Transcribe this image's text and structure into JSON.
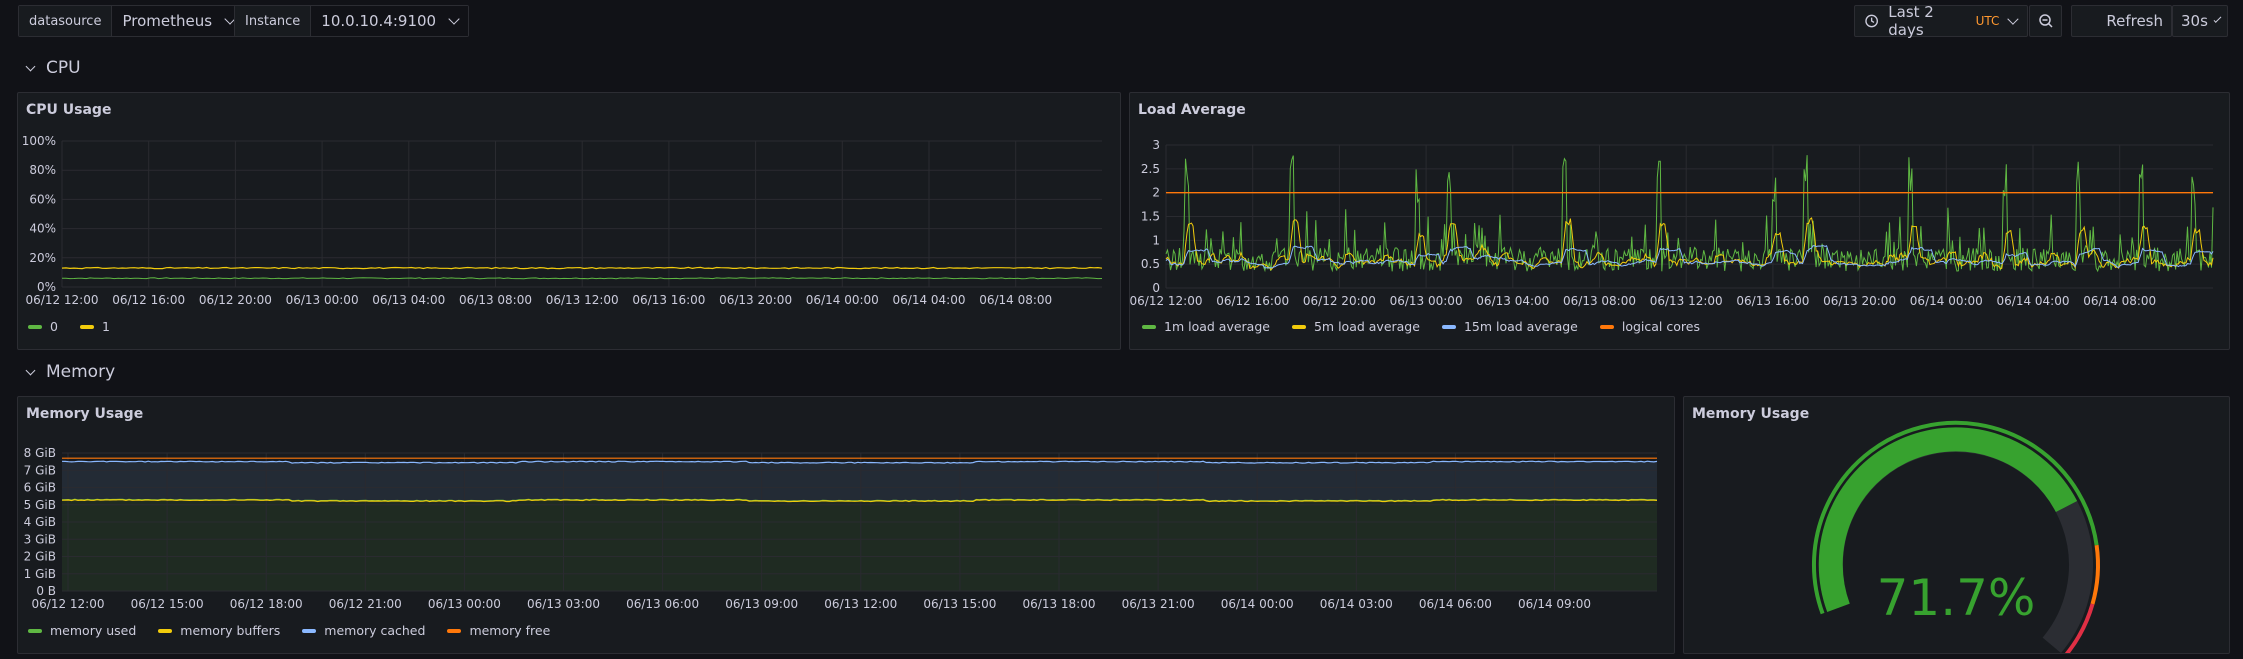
{
  "variables": {
    "datasource": {
      "label": "datasource",
      "value": "Prometheus"
    },
    "instance": {
      "label": "Instance",
      "value": "10.0.10.4:9100"
    }
  },
  "time_picker": {
    "range": "Last 2 days",
    "tz": "UTC"
  },
  "refresh": {
    "label": "Refresh",
    "interval": "30s"
  },
  "rows": {
    "cpu": "CPU",
    "memory": "Memory"
  },
  "colors": {
    "green": "#5fb843",
    "yellow": "#f2cc0c",
    "blue": "#8ab8ff",
    "orange": "#ff780a",
    "gauge_green": "#37a22f",
    "red": "#e02f44"
  },
  "panels": {
    "cpu_usage": {
      "title": "CPU Usage",
      "legend": [
        {
          "label": "0",
          "color": "#5fb843"
        },
        {
          "label": "1",
          "color": "#f2cc0c"
        }
      ],
      "y_ticks": [
        "100%",
        "80%",
        "60%",
        "40%",
        "20%",
        "0%"
      ],
      "x_ticks": [
        "06/12 12:00",
        "06/12 16:00",
        "06/12 20:00",
        "06/13 00:00",
        "06/13 04:00",
        "06/13 08:00",
        "06/13 12:00",
        "06/13 16:00",
        "06/13 20:00",
        "06/14 00:00",
        "06/14 04:00",
        "06/14 08:00"
      ]
    },
    "load_average": {
      "title": "Load Average",
      "legend": [
        {
          "label": "1m load average",
          "color": "#5fb843"
        },
        {
          "label": "5m load average",
          "color": "#f2cc0c"
        },
        {
          "label": "15m load average",
          "color": "#8ab8ff"
        },
        {
          "label": "logical cores",
          "color": "#ff780a"
        }
      ],
      "y_ticks": [
        "3",
        "2.5",
        "2",
        "1.5",
        "1",
        "0.5",
        "0"
      ],
      "x_ticks": [
        "06/12 12:00",
        "06/12 16:00",
        "06/12 20:00",
        "06/13 00:00",
        "06/13 04:00",
        "06/13 08:00",
        "06/13 12:00",
        "06/13 16:00",
        "06/13 20:00",
        "06/14 00:00",
        "06/14 04:00",
        "06/14 08:00"
      ]
    },
    "memory_usage": {
      "title": "Memory Usage",
      "legend": [
        {
          "label": "memory used",
          "color": "#5fb843"
        },
        {
          "label": "memory buffers",
          "color": "#f2cc0c"
        },
        {
          "label": "memory cached",
          "color": "#8ab8ff"
        },
        {
          "label": "memory free",
          "color": "#ff780a"
        }
      ],
      "y_ticks": [
        "8 GiB",
        "7 GiB",
        "6 GiB",
        "5 GiB",
        "4 GiB",
        "3 GiB",
        "2 GiB",
        "1 GiB",
        "0 B"
      ],
      "x_ticks": [
        "06/12 12:00",
        "06/12 15:00",
        "06/12 18:00",
        "06/12 21:00",
        "06/13 00:00",
        "06/13 03:00",
        "06/13 06:00",
        "06/13 09:00",
        "06/13 12:00",
        "06/13 15:00",
        "06/13 18:00",
        "06/13 21:00",
        "06/14 00:00",
        "06/14 03:00",
        "06/14 06:00",
        "06/14 09:00"
      ]
    },
    "memory_gauge": {
      "title": "Memory Usage",
      "value_text": "71.7%",
      "value": 71.7
    }
  },
  "chart_data": [
    {
      "type": "line",
      "title": "CPU Usage",
      "ylim": [
        0,
        100
      ],
      "series": [
        {
          "name": "0",
          "values": [
            6,
            6,
            6,
            6,
            6,
            6,
            6,
            6,
            6,
            6,
            6,
            6
          ]
        },
        {
          "name": "1",
          "values": [
            13,
            13,
            13,
            13,
            13,
            13,
            13,
            13,
            13,
            13,
            13,
            13
          ]
        }
      ]
    },
    {
      "type": "line",
      "title": "Load Average",
      "ylim": [
        0,
        3
      ],
      "series": [
        {
          "name": "1m load average",
          "values": [
            0.6,
            0.5,
            0.7,
            0.6,
            2.7,
            0.6,
            2.6,
            0.5,
            0.6,
            0.7,
            2.1,
            0.6
          ]
        },
        {
          "name": "5m load average",
          "values": [
            0.45,
            0.4,
            0.5,
            0.45,
            0.8,
            0.45,
            0.9,
            0.4,
            0.45,
            0.5,
            0.8,
            0.45
          ]
        },
        {
          "name": "15m load average",
          "values": [
            0.4,
            0.4,
            0.42,
            0.4,
            0.5,
            0.4,
            0.5,
            0.4,
            0.4,
            0.42,
            0.5,
            0.4
          ]
        },
        {
          "name": "logical cores",
          "values": [
            2,
            2,
            2,
            2,
            2,
            2,
            2,
            2,
            2,
            2,
            2,
            2
          ]
        }
      ]
    },
    {
      "type": "area",
      "title": "Memory Usage",
      "ylim": [
        0,
        8
      ],
      "series": [
        {
          "name": "memory used",
          "values": [
            5.3,
            5.3,
            5.2,
            5.3,
            5.2,
            5.3,
            5.2,
            5.3,
            5.2,
            5.3,
            5.2,
            5.3,
            5.2,
            5.3,
            5.2,
            5.3
          ]
        },
        {
          "name": "memory buffers",
          "values": [
            5.3,
            5.3,
            5.2,
            5.3,
            5.2,
            5.3,
            5.2,
            5.3,
            5.2,
            5.3,
            5.2,
            5.3,
            5.2,
            5.3,
            5.2,
            5.3
          ]
        },
        {
          "name": "memory cached",
          "values": [
            7.5,
            7.5,
            7.4,
            7.5,
            7.4,
            7.5,
            7.4,
            7.5,
            7.4,
            7.5,
            7.4,
            7.5,
            7.4,
            7.5,
            7.4,
            7.5
          ]
        },
        {
          "name": "memory free",
          "values": [
            7.7,
            7.7,
            7.7,
            7.7,
            7.7,
            7.7,
            7.7,
            7.7,
            7.7,
            7.7,
            7.7,
            7.7,
            7.7,
            7.7,
            7.7,
            7.7
          ]
        }
      ]
    },
    {
      "type": "gauge",
      "title": "Memory Usage",
      "value": 71.7,
      "unit": "%",
      "thresholds": [
        {
          "from": 0,
          "color": "green"
        },
        {
          "from": 80,
          "color": "orange"
        },
        {
          "from": 90,
          "color": "red"
        }
      ]
    }
  ]
}
